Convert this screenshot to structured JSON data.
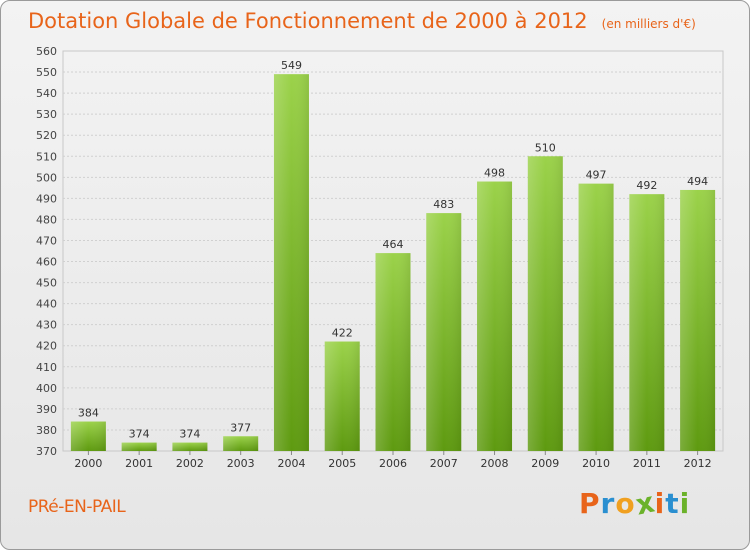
{
  "header": {
    "title": "Dotation Globale de Fonctionnement de 2000 à 2012",
    "unit": "(en milliers d'€)"
  },
  "footer": {
    "commune": "PRé-EN-PAIL",
    "logo_letters": [
      "P",
      "r",
      "o",
      "x",
      "i",
      "t",
      "i"
    ],
    "logo_colors": [
      "#e8641a",
      "#2a8fd0",
      "#f0a020",
      "#6bb22a",
      "#e8641a",
      "#2a8fd0",
      "#6bb22a"
    ]
  },
  "chart_data": {
    "type": "bar",
    "categories": [
      "2000",
      "2001",
      "2002",
      "2003",
      "2004",
      "2005",
      "2006",
      "2007",
      "2008",
      "2009",
      "2010",
      "2011",
      "2012"
    ],
    "values": [
      384,
      374,
      374,
      377,
      549,
      422,
      464,
      483,
      498,
      510,
      497,
      492,
      494
    ],
    "ylim": [
      370,
      560
    ],
    "ytick_step": 10,
    "grid": true,
    "bar_color_top": "#9bd24a",
    "bar_color_bottom": "#5e9a10"
  }
}
